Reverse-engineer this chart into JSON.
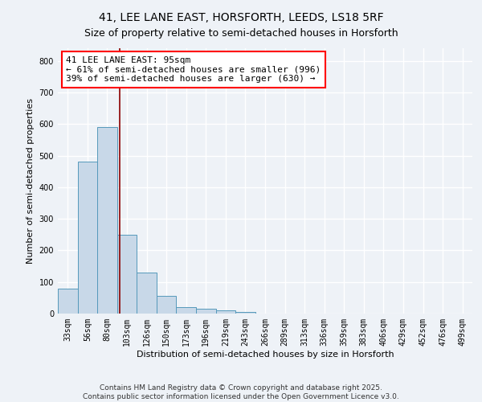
{
  "title": "41, LEE LANE EAST, HORSFORTH, LEEDS, LS18 5RF",
  "subtitle": "Size of property relative to semi-detached houses in Horsforth",
  "xlabel": "Distribution of semi-detached houses by size in Horsforth",
  "ylabel": "Number of semi-detached properties",
  "footer_line1": "Contains HM Land Registry data © Crown copyright and database right 2025.",
  "footer_line2": "Contains public sector information licensed under the Open Government Licence v3.0.",
  "categories": [
    "33sqm",
    "56sqm",
    "80sqm",
    "103sqm",
    "126sqm",
    "150sqm",
    "173sqm",
    "196sqm",
    "219sqm",
    "243sqm",
    "266sqm",
    "289sqm",
    "313sqm",
    "336sqm",
    "359sqm",
    "383sqm",
    "406sqm",
    "429sqm",
    "452sqm",
    "476sqm",
    "499sqm"
  ],
  "values": [
    80,
    480,
    590,
    250,
    130,
    55,
    20,
    15,
    10,
    5,
    0,
    0,
    0,
    0,
    0,
    0,
    0,
    0,
    0,
    0,
    0
  ],
  "bar_color": "#c8d8e8",
  "bar_edge_color": "#5599bb",
  "bar_edge_width": 0.7,
  "ylim": [
    0,
    840
  ],
  "yticks": [
    0,
    100,
    200,
    300,
    400,
    500,
    600,
    700,
    800
  ],
  "red_line_x": 2.65,
  "annotation_line1": "41 LEE LANE EAST: 95sqm",
  "annotation_line2": "← 61% of semi-detached houses are smaller (996)",
  "annotation_line3": "39% of semi-detached houses are larger (630) →",
  "background_color": "#eef2f7",
  "grid_color": "#ffffff",
  "title_fontsize": 10,
  "subtitle_fontsize": 9,
  "annotation_fontsize": 8,
  "tick_fontsize": 7,
  "label_fontsize": 8,
  "footer_fontsize": 6.5
}
